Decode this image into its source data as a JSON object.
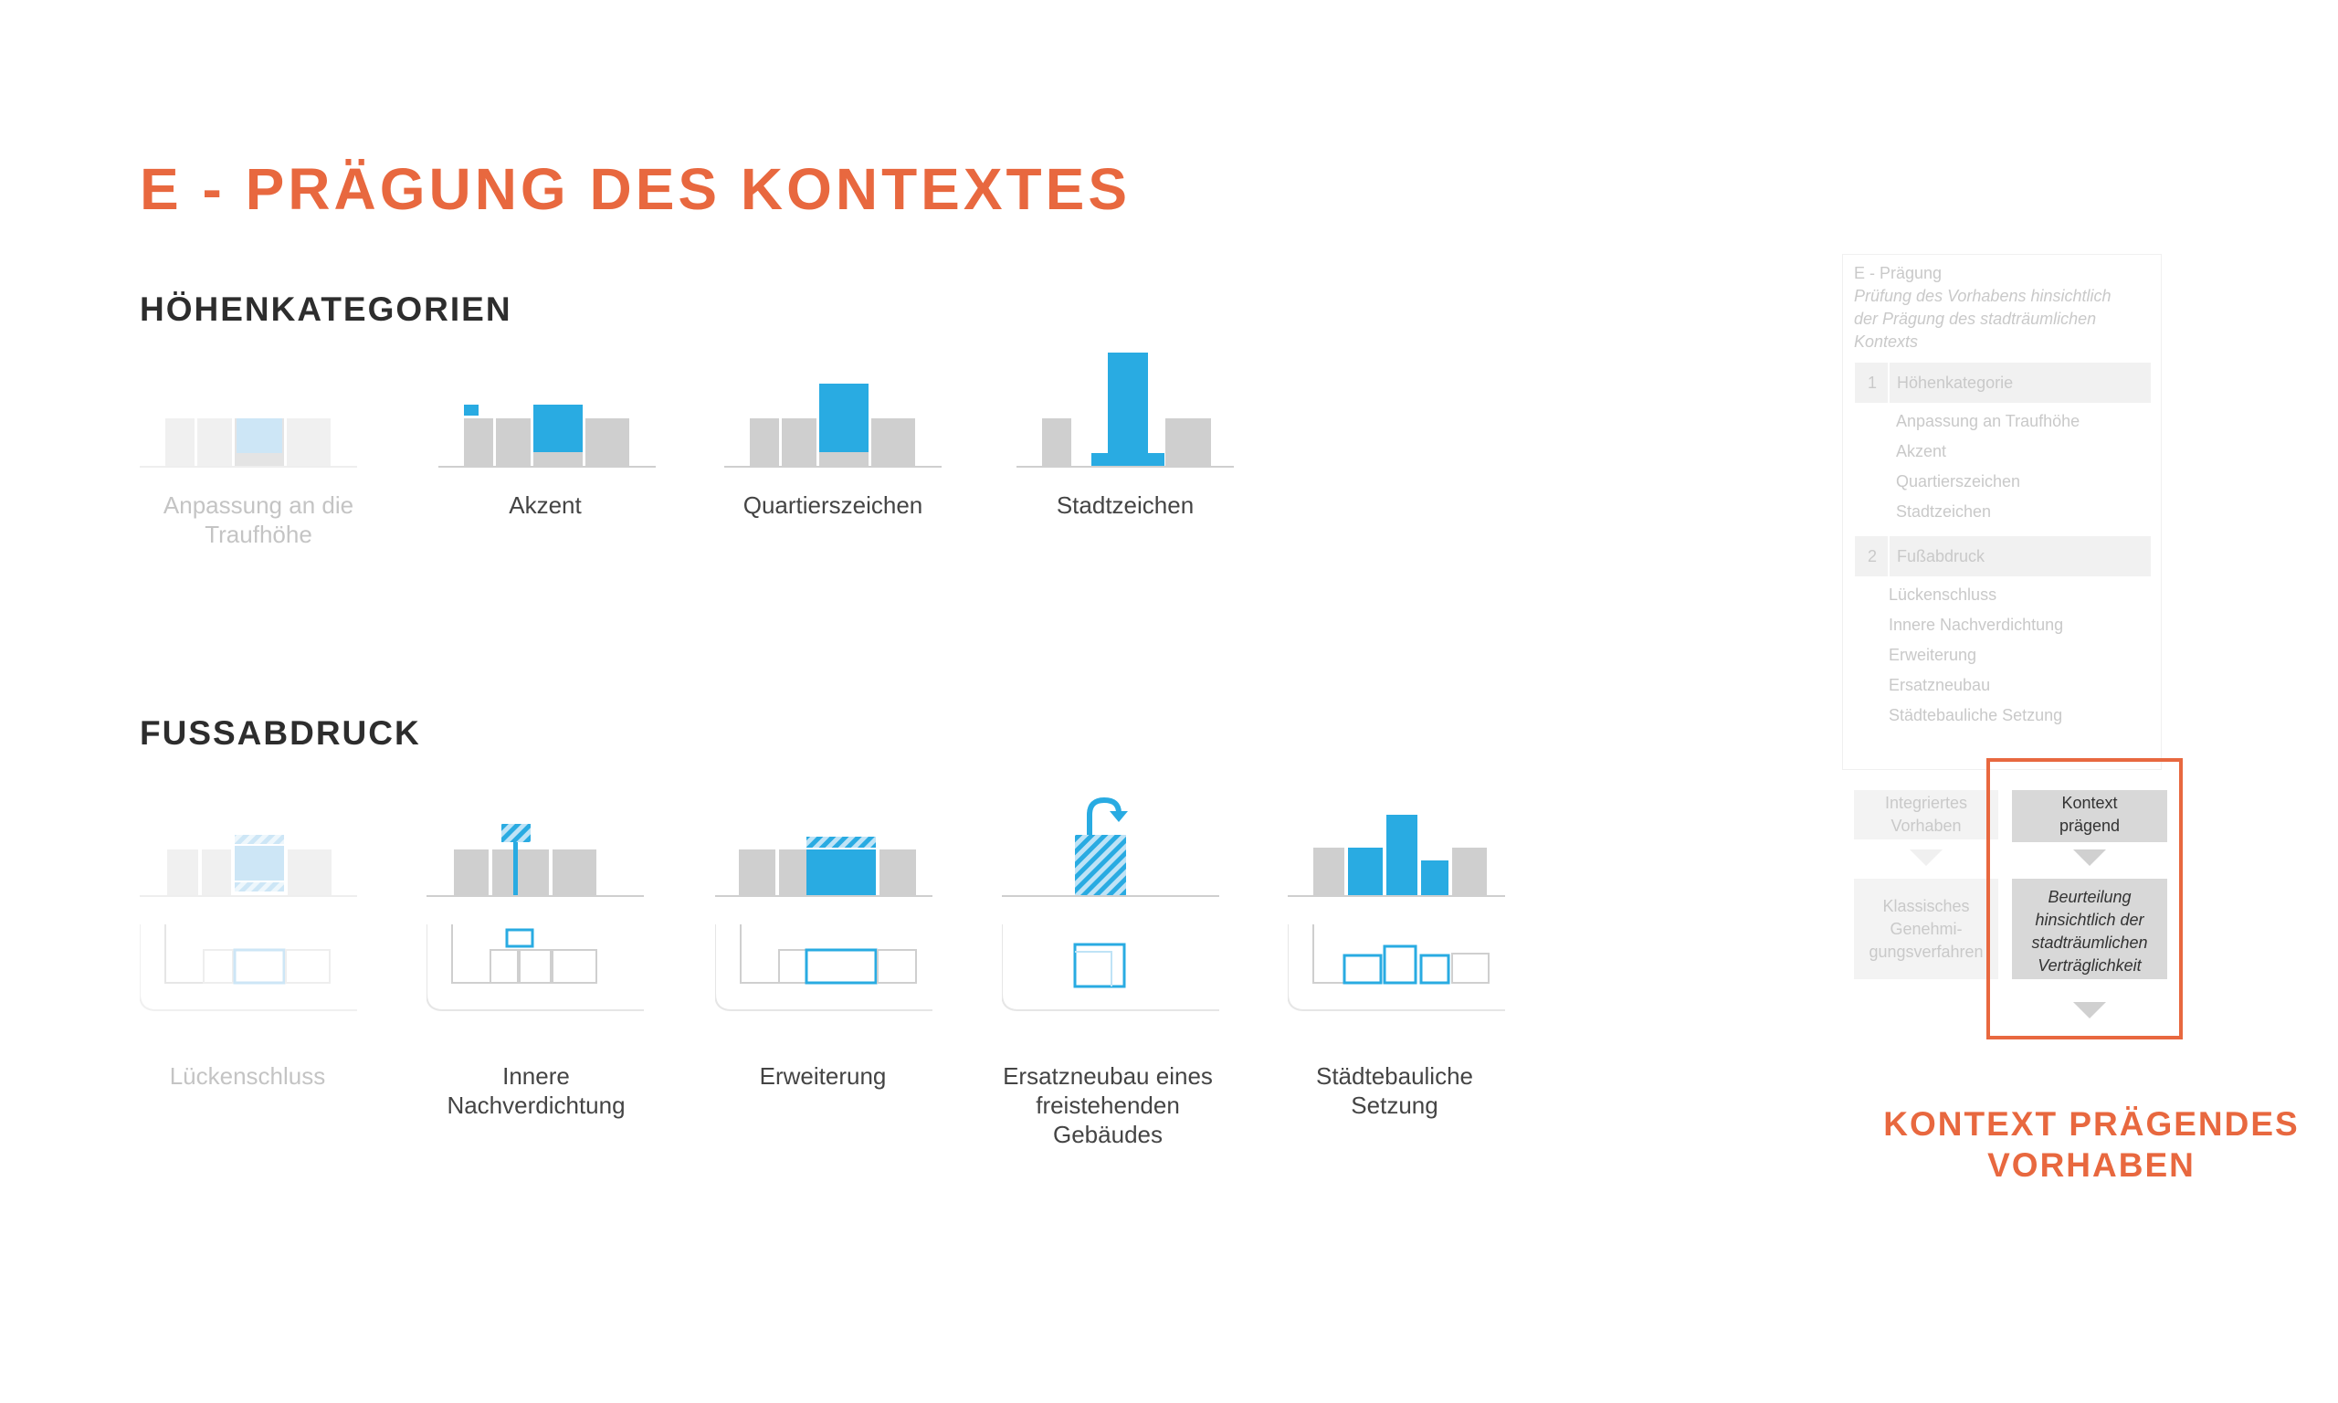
{
  "title": "E - PRÄGUNG DES KONTEXTES",
  "colors": {
    "accent": "#e8683f",
    "blue": "#29abe2",
    "light_blue": "#cde6f6",
    "grey": "#cfcfcf",
    "light_grey": "#f0f0f0"
  },
  "hoehen": {
    "heading": "HÖHENKATEGORIEN",
    "items": [
      {
        "lines": [
          "Anpassung an die",
          "Traufhöhe"
        ],
        "active": false
      },
      {
        "lines": [
          "Akzent"
        ],
        "active": true
      },
      {
        "lines": [
          "Quartierszeichen"
        ],
        "active": true
      },
      {
        "lines": [
          "Stadtzeichen"
        ],
        "active": true
      }
    ]
  },
  "fuss": {
    "heading": "FUSSABDRUCK",
    "items": [
      {
        "lines": [
          "Lückenschluss"
        ],
        "active": false
      },
      {
        "lines": [
          "Innere",
          "Nachverdichtung"
        ],
        "active": true
      },
      {
        "lines": [
          "Erweiterung"
        ],
        "active": true
      },
      {
        "lines": [
          "Ersatzneubau eines",
          "freistehenden",
          "Gebäudes"
        ],
        "active": true
      },
      {
        "lines": [
          "Städtebauliche",
          "Setzung"
        ],
        "active": true
      }
    ]
  },
  "panel": {
    "title": "E - Prägung",
    "subtitle": [
      "Prüfung des Vorhabens hinsichtlich",
      "der Prägung des stadträumlichen",
      "Kontexts"
    ],
    "group1": {
      "num": "1",
      "label": "Höhenkategorie",
      "items": [
        "Anpassung an Traufhöhe",
        "Akzent",
        "Quartierszeichen",
        "Stadtzeichen"
      ]
    },
    "group2": {
      "num": "2",
      "label": "Fußabdruck",
      "items": [
        "Lückenschluss",
        "Innere Nachverdichtung",
        "Erweiterung",
        "Ersatzneubau",
        "Städtebauliche Setzung"
      ]
    },
    "flow": {
      "integriert": [
        "Integriertes",
        "Vorhaben"
      ],
      "klassisch": [
        "Klassisches",
        "Genehmi-",
        "gungsverfahren"
      ],
      "kontext": [
        "Kontext",
        "prägend"
      ],
      "beurteilung": [
        "Beurteilung",
        "hinsichtlich der",
        "stadträumlichen",
        "Verträglichkeit"
      ]
    }
  },
  "result": [
    "KONTEXT PRÄGENDES",
    "VORHABEN"
  ]
}
